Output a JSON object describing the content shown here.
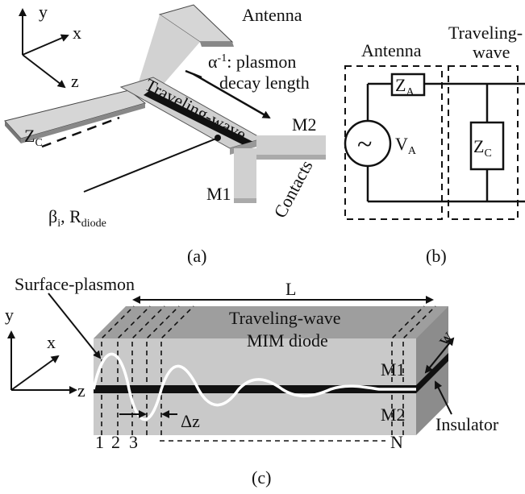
{
  "panel_a": {
    "caption": "(a)",
    "axis_y": "y",
    "axis_x": "x",
    "axis_z": "z",
    "antenna": "Antenna",
    "decay_main": "α",
    "decay_sup": "-1",
    "decay_rest": ": plasmon",
    "decay_line2": "decay length",
    "traveling_wave": "Traveling-wave",
    "zc_main": "Z",
    "zc_sub": "C",
    "m1": "M1",
    "m2": "M2",
    "contacts": "Contacts",
    "beta_main": "β",
    "beta_sub": "i",
    "beta_sep": ", R",
    "rdiode_sub": "diode"
  },
  "panel_b": {
    "caption": "(b)",
    "antenna": "Antenna",
    "traveling_line1": "Traveling-",
    "traveling_line2": "wave",
    "za_main": "Z",
    "za_sub": "A",
    "zc_main": "Z",
    "zc_sub": "C",
    "source_symbol": "~",
    "va_main": "V",
    "va_sub": "A"
  },
  "panel_c": {
    "caption": "(c)",
    "surface_plasmon": "Surface-plasmon",
    "length": "L",
    "title_line1": "Traveling-wave",
    "title_line2": "MIM diode",
    "width": "w",
    "axis_y": "y",
    "axis_x": "x",
    "axis_z": "z",
    "m1": "M1",
    "m2": "M2",
    "delta_z": "Δz",
    "insulator": "Insulator",
    "slice_1": "1",
    "slice_2": "2",
    "slice_3": "3",
    "slice_n": "N"
  },
  "colors": {
    "metal_light": "#d4d4d4",
    "metal_mid": "#a9a9a9",
    "metal_dark": "#8a8a8a",
    "insulator": "#111111",
    "plasmon_wave": "#ffffff"
  }
}
